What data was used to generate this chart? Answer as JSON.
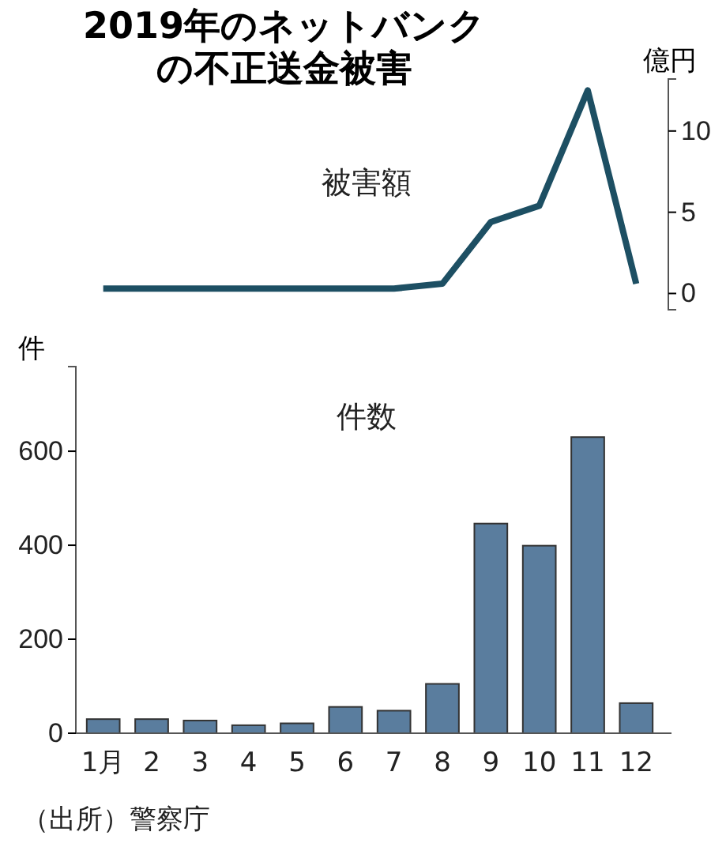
{
  "chart_data": [
    {
      "type": "line",
      "title": "2019年のネットバンクの不正送金被害",
      "ylabel": "億円",
      "categories": [
        null,
        null,
        null,
        null,
        null,
        null,
        null,
        null,
        null,
        null,
        null,
        null
      ],
      "tick_labels": "y",
      "ylim": [
        -1,
        13.2
      ],
      "yticks": [
        0,
        5,
        10
      ],
      "series": [
        {
          "name": "被害額",
          "color": "#1d4f63",
          "values": [
            0.3,
            0.3,
            0.3,
            0.3,
            0.3,
            0.3,
            0.3,
            0.6,
            4.4,
            5.4,
            12.5,
            0.6
          ]
        }
      ]
    },
    {
      "type": "bar",
      "ylabel": "件",
      "categories": [
        "1月",
        "2",
        "3",
        "4",
        "5",
        "6",
        "7",
        "8",
        "9",
        "10",
        "11",
        "12"
      ],
      "ylim": [
        0,
        780
      ],
      "yticks": [
        0,
        200,
        400,
        600
      ],
      "series": [
        {
          "name": "件数",
          "color": "#5a7d9e",
          "values": [
            30,
            30,
            27,
            17,
            21,
            56,
            48,
            105,
            446,
            399,
            630,
            64
          ]
        }
      ],
      "annotations": [
        "（出所）警察庁"
      ]
    }
  ]
}
